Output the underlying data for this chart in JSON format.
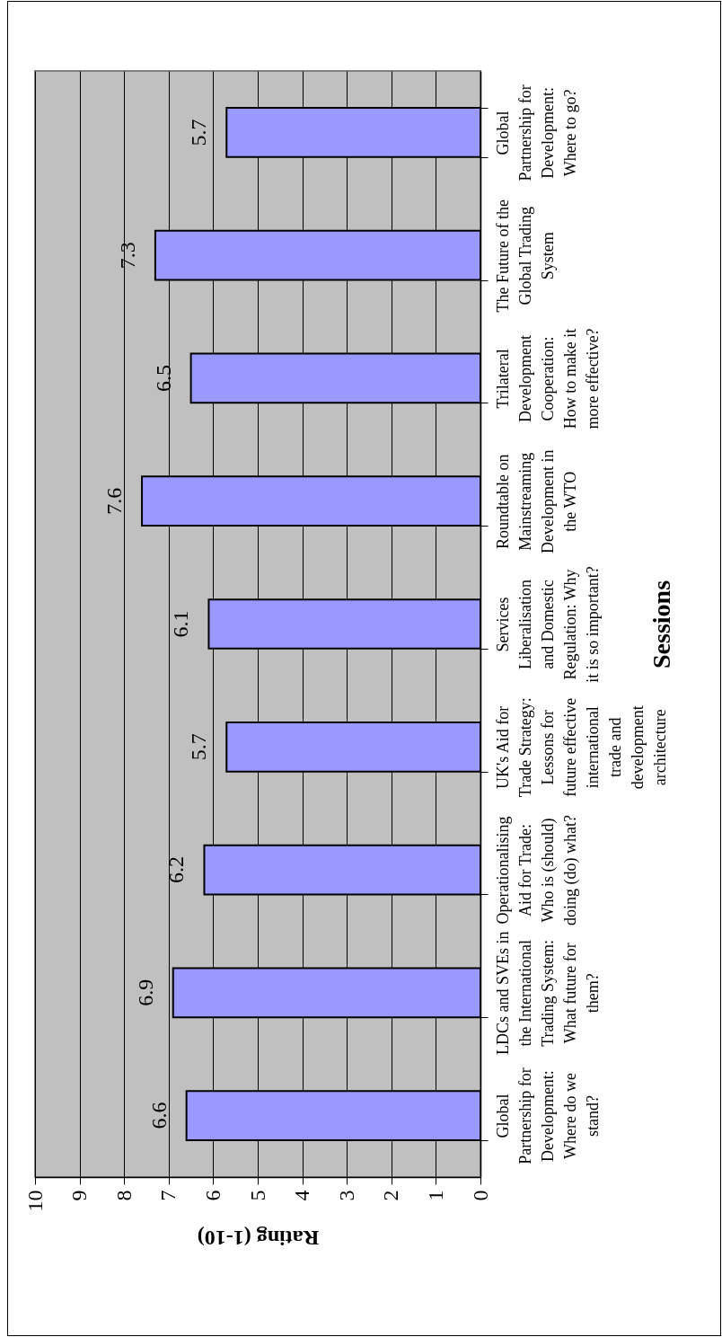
{
  "chart_data": {
    "type": "bar",
    "orientation": "horizontal",
    "xlabel": "Rating (1-10)",
    "ylabel": "Sessions",
    "categories": [
      "Global\nPartnership for\nDevelopment:\nWhere to go?",
      "The Future of the\nGlobal Trading\nSystem",
      "Trilateral\nDevelopment\nCooperation:\nHow to make it\nmore effective?",
      "Roundtable on\nMainstreaming\nDevelopment in\nthe WTO",
      "Services\nLiberalisation\nand Domestic\nRegulation: Why\nit is so important?",
      "UK's Aid for\nTrade Strategy:\nLessons for\nfuture effective\ninternational\ntrade and\ndevelopment\narchitecture",
      "Operationalising\nAid for Trade:\nWho is (should)\ndoing (do) what?",
      "LDCs and SVEs in\nthe International\nTrading System:\nWhat future for\nthem?",
      "Global\nPartnership for\nDevelopment:\nWhere do we\nstand?"
    ],
    "values": [
      5.7,
      7.3,
      6.5,
      7.6,
      6.1,
      5.7,
      6.2,
      6.9,
      6.6
    ],
    "color": "#9999ff",
    "xlim": [
      10,
      0
    ],
    "xticks": [
      10,
      9,
      8,
      7,
      6,
      5,
      4,
      3,
      2,
      1,
      0
    ],
    "grid": "x",
    "data_labels": true
  }
}
